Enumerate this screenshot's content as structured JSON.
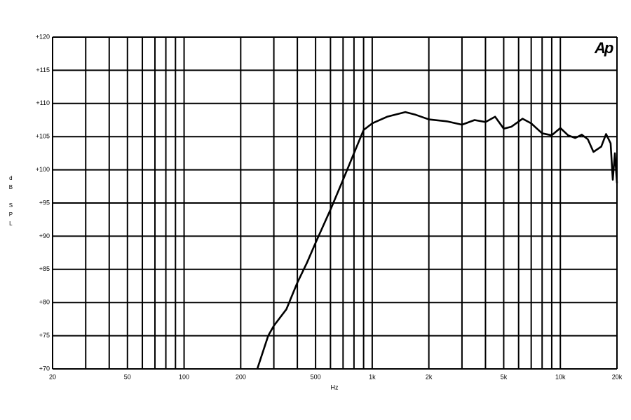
{
  "chart_data": {
    "type": "line",
    "logo": "Ap",
    "x_label": "Hz",
    "y_label": "dB SPL",
    "x_log": true,
    "xlim": [
      20,
      20000
    ],
    "ylim": [
      70,
      120
    ],
    "xticks": [
      20,
      50,
      100,
      200,
      500,
      {
        "value": 1000,
        "label": "1k"
      },
      {
        "value": 2000,
        "label": "2k"
      },
      {
        "value": 5000,
        "label": "5k"
      },
      {
        "value": 10000,
        "label": "10k"
      },
      {
        "value": 20000,
        "label": "20k"
      }
    ],
    "x_grid_lines": [
      20,
      30,
      40,
      50,
      60,
      70,
      80,
      90,
      100,
      200,
      300,
      400,
      500,
      600,
      700,
      800,
      900,
      1000,
      2000,
      3000,
      4000,
      5000,
      6000,
      7000,
      8000,
      9000,
      10000,
      20000
    ],
    "yticks": [
      {
        "value": 70,
        "label": "+70"
      },
      {
        "value": 75,
        "label": "+75"
      },
      {
        "value": 80,
        "label": "+80"
      },
      {
        "value": 85,
        "label": "+85"
      },
      {
        "value": 90,
        "label": "+90"
      },
      {
        "value": 95,
        "label": "+95"
      },
      {
        "value": 100,
        "label": "+100"
      },
      {
        "value": 105,
        "label": "+105"
      },
      {
        "value": 110,
        "label": "+110"
      },
      {
        "value": 115,
        "label": "+115"
      },
      {
        "value": 120,
        "label": "+120"
      }
    ],
    "grid": true,
    "color": "#000000",
    "x": [
      245,
      280,
      300,
      350,
      400,
      450,
      500,
      600,
      700,
      800,
      900,
      1000,
      1200,
      1500,
      1700,
      2000,
      2500,
      3000,
      3500,
      4000,
      4500,
      5000,
      5500,
      6300,
      7000,
      8000,
      9000,
      10000,
      11000,
      12000,
      13000,
      14000,
      15000,
      16500,
      17500,
      18500,
      19000,
      19500,
      20000
    ],
    "values": [
      70,
      75,
      76.5,
      79,
      83,
      86,
      89,
      94,
      98.5,
      102.5,
      106,
      107,
      108,
      108.7,
      108.3,
      107.6,
      107.3,
      106.8,
      107.5,
      107.2,
      108,
      106.2,
      106.5,
      107.7,
      107,
      105.5,
      105.2,
      106.3,
      105.2,
      104.8,
      105.3,
      104.6,
      102.7,
      103.5,
      105.4,
      104,
      98.5,
      102.5,
      98
    ]
  }
}
